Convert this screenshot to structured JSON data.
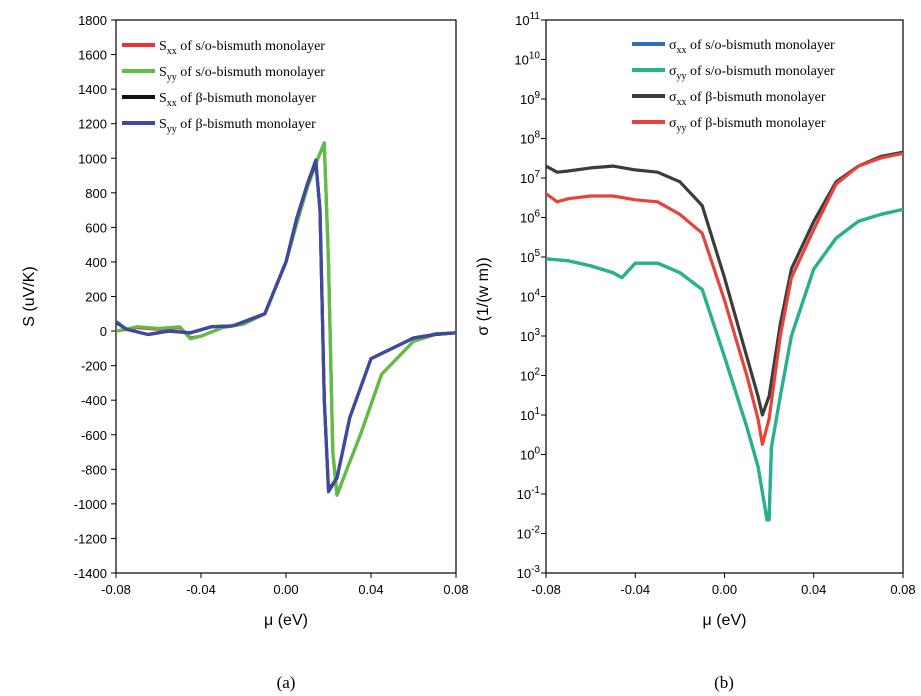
{
  "chart_data": [
    {
      "type": "line",
      "caption": "(a)",
      "xlabel": "μ (eV)",
      "ylabel": "S (uV/K)",
      "xlim": [
        -0.08,
        0.08
      ],
      "ylim": [
        -1400,
        1800
      ],
      "xticks": [
        -0.08,
        -0.04,
        0.0,
        0.04,
        0.08
      ],
      "xtick_labels": [
        "-0.08",
        "-0.04",
        "0.00",
        "0.04",
        "0.08"
      ],
      "yticks": [
        -1400,
        -1200,
        -1000,
        -800,
        -600,
        -400,
        -200,
        0,
        200,
        400,
        600,
        800,
        1000,
        1200,
        1400,
        1600,
        1800
      ],
      "ytick_labels": [
        "-1400",
        "-1200",
        "-1000",
        "-800",
        "-600",
        "-400",
        "-200",
        "0",
        "200",
        "400",
        "600",
        "800",
        "1000",
        "1200",
        "1400",
        "1600",
        "1800"
      ],
      "legend_position": "top-right",
      "series": [
        {
          "base": "S",
          "sub": "xx",
          "rest": " of s/o-bismuth monolayer",
          "color": "#e8323c",
          "x": [
            -0.08,
            -0.07,
            -0.06,
            -0.05,
            -0.045,
            -0.04,
            -0.03,
            -0.02,
            -0.01,
            0.0,
            0.005,
            0.01,
            0.015,
            0.018,
            0.02,
            0.022,
            0.024,
            0.028,
            0.035,
            0.045,
            0.06,
            0.07,
            0.08
          ],
          "y": [
            0,
            20,
            10,
            20,
            -40,
            -30,
            20,
            40,
            100,
            400,
            620,
            830,
            1000,
            1080,
            400,
            -700,
            -950,
            -820,
            -600,
            -250,
            -60,
            -20,
            -10
          ]
        },
        {
          "base": "S",
          "sub": "yy",
          "rest": " of s/o-bismuth monolayer",
          "color": "#5cbf45",
          "x": [
            -0.08,
            -0.07,
            -0.06,
            -0.05,
            -0.045,
            -0.04,
            -0.03,
            -0.02,
            -0.01,
            0.0,
            0.005,
            0.01,
            0.015,
            0.018,
            0.02,
            0.022,
            0.024,
            0.028,
            0.035,
            0.045,
            0.06,
            0.07,
            0.08
          ],
          "y": [
            0,
            25,
            15,
            25,
            -45,
            -30,
            20,
            40,
            100,
            400,
            620,
            830,
            1000,
            1090,
            400,
            -700,
            -950,
            -820,
            -600,
            -250,
            -60,
            -15,
            -10
          ]
        },
        {
          "base": "S",
          "sub": "xx",
          "rest": " of β-bismuth monolayer",
          "color": "#111111",
          "x": [
            -0.08,
            -0.075,
            -0.065,
            -0.055,
            -0.045,
            -0.035,
            -0.025,
            -0.01,
            0.0,
            0.005,
            0.01,
            0.014,
            0.016,
            0.018,
            0.02,
            0.024,
            0.03,
            0.04,
            0.05,
            0.06,
            0.07,
            0.08
          ],
          "y": [
            50,
            10,
            -20,
            0,
            -10,
            25,
            30,
            100,
            400,
            650,
            850,
            980,
            700,
            -400,
            -920,
            -850,
            -500,
            -160,
            -100,
            -40,
            -20,
            -10
          ]
        },
        {
          "base": "S",
          "sub": "yy",
          "rest": " of β-bismuth monolayer",
          "color": "#3e4aa1",
          "x": [
            -0.08,
            -0.075,
            -0.065,
            -0.055,
            -0.045,
            -0.035,
            -0.025,
            -0.01,
            0.0,
            0.005,
            0.01,
            0.014,
            0.016,
            0.018,
            0.02,
            0.024,
            0.03,
            0.04,
            0.05,
            0.06,
            0.07,
            0.08
          ],
          "y": [
            55,
            10,
            -20,
            0,
            -10,
            25,
            30,
            100,
            400,
            650,
            850,
            990,
            700,
            -400,
            -930,
            -850,
            -500,
            -160,
            -100,
            -40,
            -20,
            -10
          ]
        }
      ]
    },
    {
      "type": "line",
      "caption": "(b)",
      "xlabel": "μ (eV)",
      "ylabel": "σ (1/(w m))",
      "yscale": "log",
      "xlim": [
        -0.08,
        0.08
      ],
      "ylim": [
        0.001,
        100000000000
      ],
      "xticks": [
        -0.08,
        -0.04,
        0.0,
        0.04,
        0.08
      ],
      "xtick_labels": [
        "-0.08",
        "-0.04",
        "0.00",
        "0.04",
        "0.08"
      ],
      "yticks_base": "10",
      "ytick_exponents": [
        "-3",
        "-2",
        "-1",
        "0",
        "1",
        "2",
        "3",
        "4",
        "5",
        "6",
        "7",
        "8",
        "9",
        "10",
        "11"
      ],
      "legend_position": "top-right",
      "series": [
        {
          "base": "σ",
          "sub": "xx",
          "rest": " of s/o-bismuth monolayer",
          "color": "#2f6fba",
          "x": [
            -0.08,
            -0.07,
            -0.06,
            -0.05,
            -0.046,
            -0.04,
            -0.03,
            -0.02,
            -0.01,
            0.0,
            0.01,
            0.015,
            0.018,
            0.019,
            0.02,
            0.021,
            0.025,
            0.03,
            0.04,
            0.05,
            0.06,
            0.07,
            0.08
          ],
          "y": [
            90000,
            80000,
            60000,
            40000,
            30000,
            70000,
            70000,
            40000,
            15000,
            300,
            5,
            0.5,
            0.05,
            0.025,
            0.025,
            1.5,
            30,
            1000,
            50000,
            300000,
            800000,
            1200000,
            1600000
          ]
        },
        {
          "base": "σ",
          "sub": "yy",
          "rest": " of s/o-bismuth monolayer",
          "color": "#24b38a",
          "x": [
            -0.08,
            -0.07,
            -0.06,
            -0.05,
            -0.046,
            -0.04,
            -0.03,
            -0.02,
            -0.01,
            0.0,
            0.01,
            0.015,
            0.018,
            0.019,
            0.02,
            0.021,
            0.025,
            0.03,
            0.04,
            0.05,
            0.06,
            0.07,
            0.08
          ],
          "y": [
            90000,
            80000,
            60000,
            40000,
            30000,
            70000,
            70000,
            40000,
            15000,
            300,
            5,
            0.5,
            0.05,
            0.022,
            0.022,
            1.5,
            30,
            1000,
            50000,
            300000,
            800000,
            1200000,
            1600000
          ]
        },
        {
          "base": "σ",
          "sub": "xx",
          "rest": " of β-bismuth monolayer",
          "color": "#3c3c3c",
          "x": [
            -0.08,
            -0.075,
            -0.07,
            -0.06,
            -0.05,
            -0.04,
            -0.03,
            -0.02,
            -0.01,
            0.0,
            0.01,
            0.015,
            0.017,
            0.02,
            0.025,
            0.03,
            0.04,
            0.05,
            0.06,
            0.07,
            0.08
          ],
          "y": [
            20000000,
            14000000,
            15000000,
            18000000,
            20000000,
            16000000,
            14000000,
            8000000,
            2000000,
            30000,
            300,
            30,
            10,
            30,
            2000,
            50000,
            800000,
            8000000,
            20000000,
            35000000,
            45000000
          ]
        },
        {
          "base": "σ",
          "sub": "yy",
          "rest": " of β-bismuth monolayer",
          "color": "#e8423c",
          "x": [
            -0.08,
            -0.075,
            -0.07,
            -0.06,
            -0.05,
            -0.04,
            -0.03,
            -0.02,
            -0.01,
            0.0,
            0.01,
            0.015,
            0.017,
            0.02,
            0.025,
            0.03,
            0.04,
            0.05,
            0.06,
            0.07,
            0.08
          ],
          "y": [
            4000000,
            2500000,
            3000000,
            3500000,
            3500000,
            2800000,
            2500000,
            1200000,
            400000,
            8000,
            100,
            8,
            1.8,
            8,
            1000,
            30000,
            500000,
            7000000,
            20000000,
            32000000,
            42000000
          ]
        }
      ]
    }
  ]
}
